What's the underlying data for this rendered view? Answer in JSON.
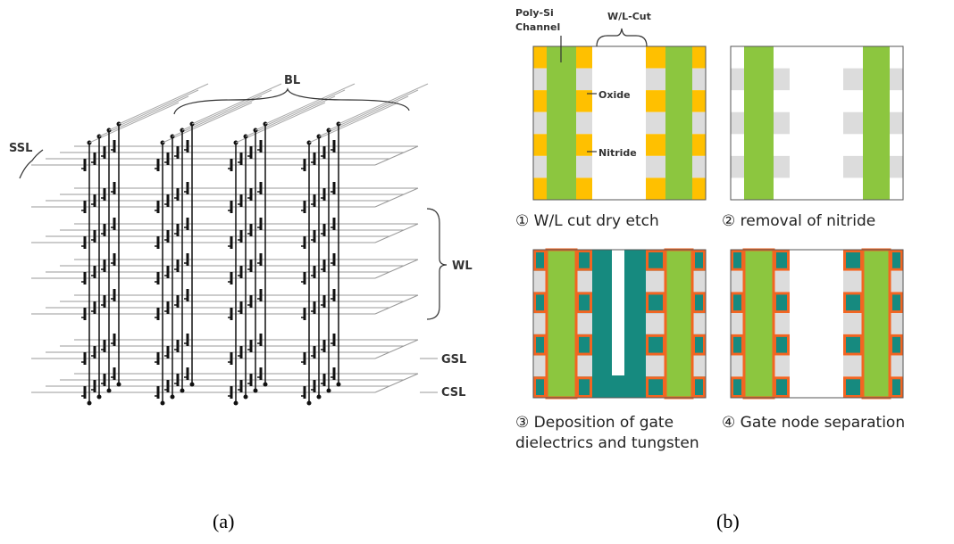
{
  "panel_a": {
    "labels": {
      "bl": "BL",
      "ssl": "SSL",
      "wl": "WL",
      "gsl": "GSL",
      "csl": "CSL"
    },
    "caption": "(a)"
  },
  "panel_b": {
    "callouts": {
      "channel": [
        "Poly-Si",
        "Channel"
      ],
      "wl_cut": "W/L-Cut",
      "oxide": "Oxide",
      "nitride": "Nitride"
    },
    "steps": [
      {
        "label": [
          "① W/L cut dry etch"
        ]
      },
      {
        "label": [
          "② removal of nitride"
        ]
      },
      {
        "label": [
          "③ Deposition of gate",
          "dielectrics and tungsten"
        ]
      },
      {
        "label": [
          "④ Gate node separation"
        ]
      }
    ],
    "caption": "(b)"
  }
}
